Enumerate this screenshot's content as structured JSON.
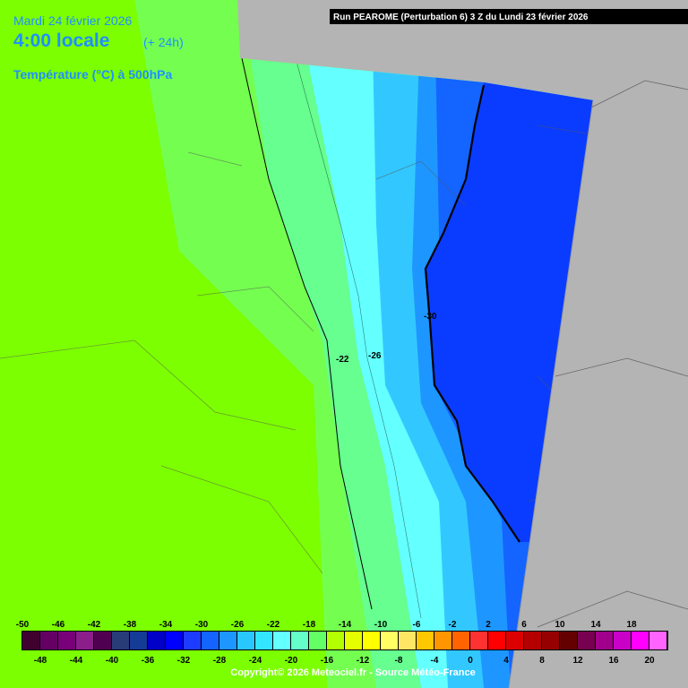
{
  "header": {
    "date": "Mardi 24 février 2026",
    "time": "4:00 locale",
    "lead": "(+ 24h)",
    "parameter": "Température (°C) à 500hPa",
    "run": "Run PEAROME (Perturbation 6) 3 Z du Lundi 23 février 2026"
  },
  "contour_labels": [
    "-30",
    "-26",
    "-22"
  ],
  "legend": {
    "ticks": [
      -50,
      -48,
      -46,
      -44,
      -42,
      -40,
      -38,
      -36,
      -34,
      -32,
      -30,
      -28,
      -26,
      -24,
      -22,
      -20,
      -18,
      -16,
      -14,
      -12,
      -10,
      -8,
      -6,
      -4,
      -2,
      0,
      2,
      4,
      6,
      8,
      10,
      12,
      14,
      16,
      18,
      20
    ],
    "colors": [
      "#400030",
      "#640064",
      "#780078",
      "#8c1e8c",
      "#500050",
      "#283c78",
      "#143c96",
      "#0000c8",
      "#0000ff",
      "#1e3cff",
      "#1464ff",
      "#1e96ff",
      "#28c8ff",
      "#32e6ff",
      "#64ffff",
      "#64ffc8",
      "#64ff64",
      "#b4ff00",
      "#e6ff00",
      "#ffff00",
      "#ffff64",
      "#ffe664",
      "#ffc800",
      "#ff9600",
      "#ff6400",
      "#ff3232",
      "#ff0000",
      "#dc0000",
      "#b40000",
      "#960000",
      "#640000",
      "#780050",
      "#a0008c",
      "#c800c8",
      "#ff00ff",
      "#ff64ff"
    ]
  },
  "footer": "Copyright© 2026 Meteociel.fr - Source Météo-France"
}
